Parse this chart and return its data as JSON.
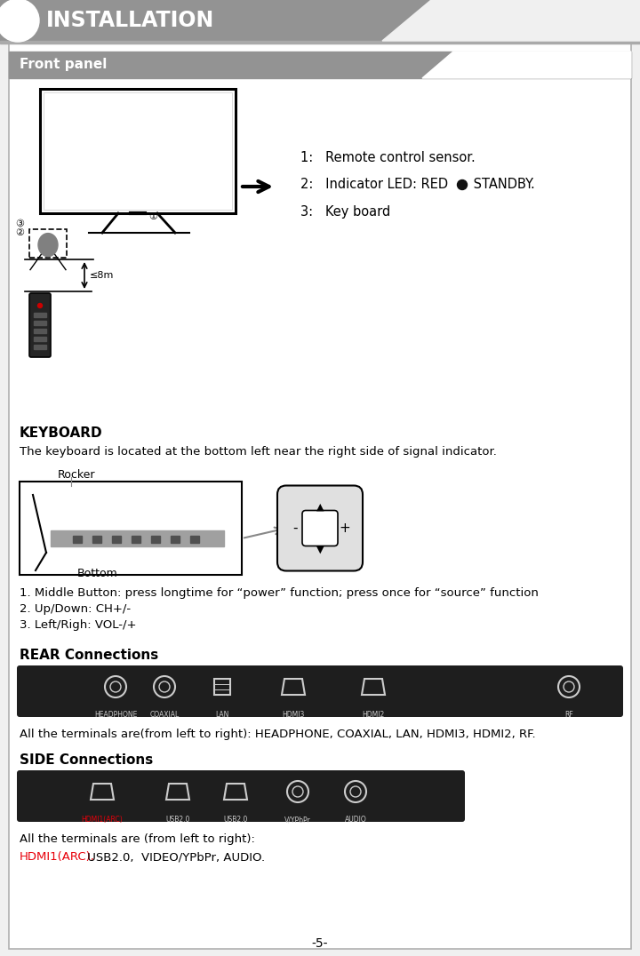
{
  "title": "INSTALLATION",
  "section1": "Front panel",
  "section2": "REAR Connections",
  "section3": "SIDE Connections",
  "section4": "KEYBOARD",
  "keyboard_desc": "The keyboard is located at the bottom left near the right side of signal indicator.",
  "keyboard_label1": "Rocker",
  "keyboard_label2": "Bottom",
  "front_panel_items": [
    "1:   Remote control sensor.",
    "2:   Indicator LED: RED",
    "3:   Key board"
  ],
  "standby_text": " STANDBY.",
  "keyboard_instructions": [
    "1. Middle Button: press longtime for “power” function; press once for “source” function",
    "2. Up/Down: CH+/-",
    "3. Left/Righ: VOL-/+"
  ],
  "rear_desc": "All the terminals are(from left to right): HEADPHONE, COAXIAL, LAN, HDMI3, HDMI2, RF.",
  "rear_labels": [
    "HEADPHONE",
    "COAXIAL",
    "LAN",
    "HDMI3",
    "HDMI2",
    "RF"
  ],
  "side_desc_line1": "All the terminals are (from left to right):",
  "side_desc_line2_normal": " USB2.0,  VIDEO/YPbPr, AUDIO.",
  "side_desc_line2_colored": "HDMI1(ARC),",
  "side_labels": [
    "HDMI1(ARC)",
    "USB2.0",
    "USB2.0",
    "V/YPbPr",
    "AUDIO"
  ],
  "page_number": "-5-",
  "bg_color": "#f0f0f0",
  "header_color": "#939393",
  "section_bar_color": "#939393",
  "white": "#ffffff",
  "black": "#000000",
  "red_color": "#e8000a",
  "led_red": "#111111",
  "panel_dark": "#1e1e1e"
}
